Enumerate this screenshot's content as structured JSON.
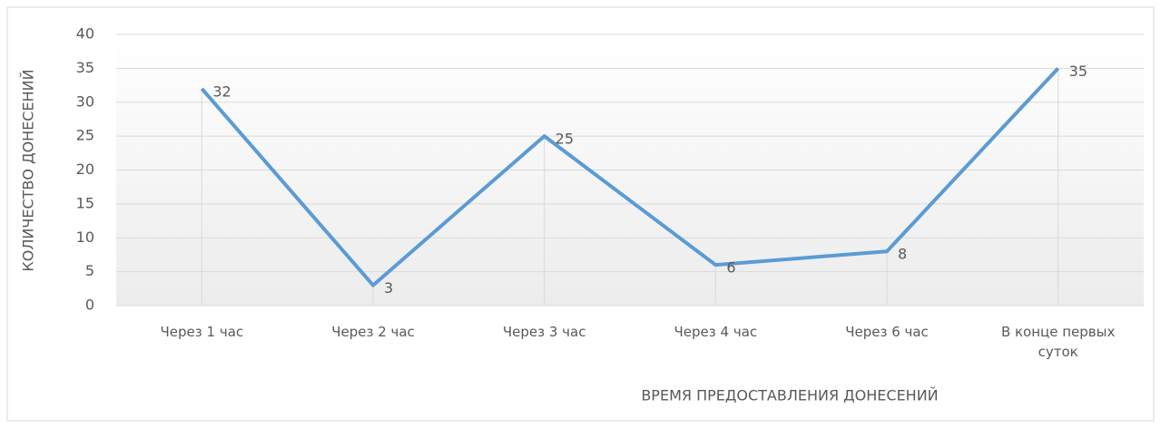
{
  "chart_data": {
    "type": "line",
    "x_label": "ВРЕМЯ ПРЕДОСТАВЛЕНИЯ ДОНЕСЕНИЙ",
    "y_label": "КОЛИЧЕСТВО ДОНЕСЕНИЙ",
    "categories": [
      "Через 1 час",
      "Через 2 час",
      "Через 3 час",
      "Через 4 час",
      "Через 6 час",
      "В конце первых суток"
    ],
    "values": [
      32,
      3,
      25,
      6,
      8,
      35
    ],
    "color": "#5b9bd5",
    "ylim": [
      0,
      40
    ],
    "yticks": [
      0,
      5,
      10,
      15,
      20,
      25,
      30,
      35,
      40
    ],
    "grid": true,
    "drop_lines": true,
    "data_labels": true
  }
}
